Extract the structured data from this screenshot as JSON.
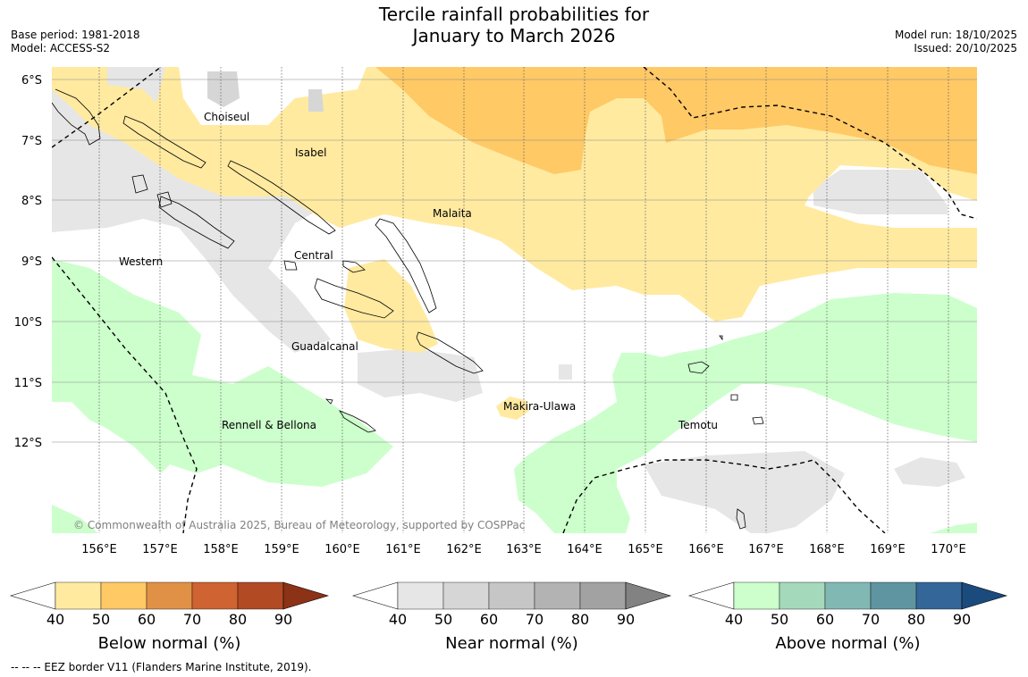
{
  "title_line1": "Tercile rainfall probabilities for",
  "title_line2": "January to March 2026",
  "base_period": "Base period: 1981-2018",
  "model": "Model: ACCESS-S2",
  "model_run": "Model run: 18/10/2025",
  "issued": "Issued: 20/10/2025",
  "copyright": "© Commonwealth of Australia 2025, Bureau of Meteorology, supported by COSPPac",
  "lat_labels": [
    "6°S",
    "7°S",
    "8°S",
    "9°S",
    "10°S",
    "11°S",
    "12°S"
  ],
  "lon_labels": [
    "156°E",
    "157°E",
    "158°E",
    "159°E",
    "160°E",
    "161°E",
    "162°E",
    "163°E",
    "164°E",
    "165°E",
    "166°E",
    "167°E",
    "168°E",
    "169°E",
    "170°E"
  ],
  "regions": [
    "Choiseul",
    "Isabel",
    "Malaita",
    "Central",
    "Western",
    "Guadalcanal",
    "Makira-Ulawa",
    "Rennell & Bellona",
    "Temotu"
  ],
  "colorbars": [
    {
      "title": "Below normal (%)",
      "ticks": [
        "40",
        "50",
        "60",
        "70",
        "80",
        "90"
      ],
      "colors": [
        "#ffeaa0",
        "#ffc966",
        "#e09146",
        "#cf6331",
        "#b24a24",
        "#8c3216"
      ]
    },
    {
      "title": "Near normal (%)",
      "ticks": [
        "40",
        "50",
        "60",
        "70",
        "80",
        "90"
      ],
      "colors": [
        "#e6e6e6",
        "#d6d6d6",
        "#c6c6c6",
        "#b3b3b3",
        "#a2a2a2",
        "#828282"
      ]
    },
    {
      "title": "Above normal (%)",
      "ticks": [
        "40",
        "50",
        "60",
        "70",
        "80",
        "90"
      ],
      "colors": [
        "#ccffcc",
        "#a5d9bb",
        "#82b8b3",
        "#5e95a1",
        "#356699",
        "#1b4a7d"
      ]
    }
  ],
  "legend_note": "--  --  -- EEZ border V11 (Flanders Marine Institute, 2019)."
}
